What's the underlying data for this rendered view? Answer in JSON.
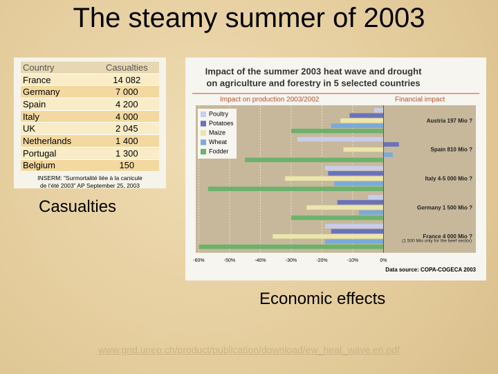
{
  "title": "The steamy summer of 2003",
  "table": {
    "header": [
      "Country",
      "Casualties"
    ],
    "rows": [
      [
        "France",
        "14 082"
      ],
      [
        "Germany",
        "7 000"
      ],
      [
        "Spain",
        "4 200"
      ],
      [
        "Italy",
        "4 000"
      ],
      [
        "UK",
        "2 045"
      ],
      [
        "Netherlands",
        "1 400"
      ],
      [
        "Portugal",
        "1 300"
      ],
      [
        "Belgium",
        "150"
      ]
    ],
    "source": [
      "INSERM: “Surmortalité liée à la canicule",
      "de l’été 2003” AP September 25, 2003"
    ]
  },
  "captions": [
    "Casualties",
    "Economic effects"
  ],
  "url": "www.grid.unep.ch/product/publication/download/ew_heat_wave.en.pdf",
  "chart_data": {
    "type": "bar",
    "orientation": "horizontal",
    "title": [
      "Impact of the summer 2003 heat wave and drought",
      "on agriculture and forestry in 5 selected countries"
    ],
    "subtitles": [
      "Impact on production 2003/2002",
      "Financial impact"
    ],
    "categories": [
      "Austria",
      "Spain",
      "Italy",
      "Germany",
      "France"
    ],
    "series": [
      {
        "name": "Poultry",
        "color": "#c9cdea",
        "values": [
          -3,
          -28,
          -19,
          -5,
          -19
        ]
      },
      {
        "name": "Potatoes",
        "color": "#6a72ba",
        "values": [
          -11,
          5,
          -18,
          -15,
          -17
        ]
      },
      {
        "name": "Maize",
        "color": "#ebe6aa",
        "values": [
          -14,
          -13,
          -32,
          -25,
          -36
        ]
      },
      {
        "name": "Wheat",
        "color": "#7aaad9",
        "values": [
          -17,
          3,
          -16,
          -8,
          -19
        ]
      },
      {
        "name": "Fodder",
        "color": "#6cb26c",
        "values": [
          -30,
          -45,
          -57,
          -30,
          -60
        ]
      }
    ],
    "annotations": [
      "Austria 197 Mio ?",
      "Spain 810 Mio ?",
      "Italy 4-5 000 Mio ?",
      "Germany 1 500 Mio ?",
      "France 4 000 Mio ?",
      "(1 500 Mio only for the beef sector)"
    ],
    "xlim": [
      -61,
      30
    ],
    "xticks": [
      {
        "value": -60,
        "label": "-60%"
      },
      {
        "value": -50,
        "label": "-50%"
      },
      {
        "value": -40,
        "label": "-40%"
      },
      {
        "value": -30,
        "label": "-30%"
      },
      {
        "value": -20,
        "label": "-20%"
      },
      {
        "value": -10,
        "label": "-10%"
      },
      {
        "value": 0,
        "label": "0%"
      }
    ],
    "legend": "upper left",
    "source": "Data source: COPA-COGECA 2003"
  }
}
